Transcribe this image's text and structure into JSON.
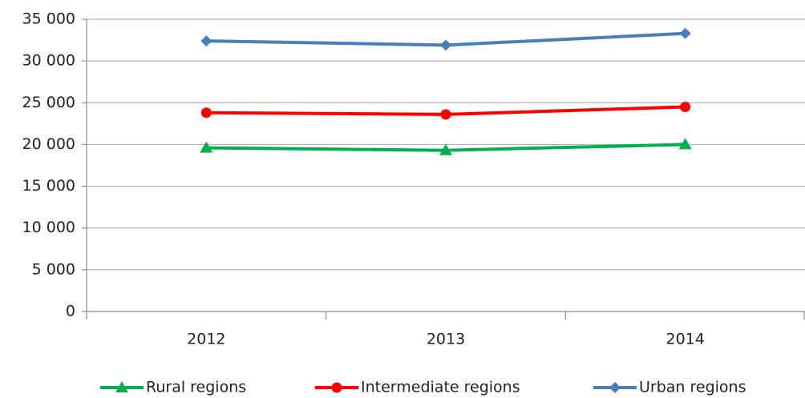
{
  "chart_data": {
    "type": "line",
    "categories": [
      "2012",
      "2013",
      "2014"
    ],
    "series": [
      {
        "name": "Rural regions",
        "color": "#00b050",
        "marker": "triangle",
        "values": [
          19600,
          19300,
          20000
        ]
      },
      {
        "name": "Intermediate regions",
        "color": "#ff0000",
        "marker": "circle",
        "values": [
          23800,
          23600,
          24500
        ]
      },
      {
        "name": "Urban regions",
        "color": "#4a7ebb",
        "marker": "diamond",
        "values": [
          32400,
          31900,
          33300
        ]
      }
    ],
    "ylim": [
      0,
      35000
    ],
    "yticks": [
      0,
      {
        "value": 5000,
        "label": "5 000"
      },
      {
        "value": 10000,
        "label": "10 000"
      },
      {
        "value": 15000,
        "label": "15 000"
      },
      {
        "value": 20000,
        "label": "20 000"
      },
      {
        "value": 25000,
        "label": "25 000"
      },
      {
        "value": 30000,
        "label": "30 000"
      },
      {
        "value": 35000,
        "label": "35 000"
      }
    ],
    "grid": true,
    "legend": "bottom"
  }
}
